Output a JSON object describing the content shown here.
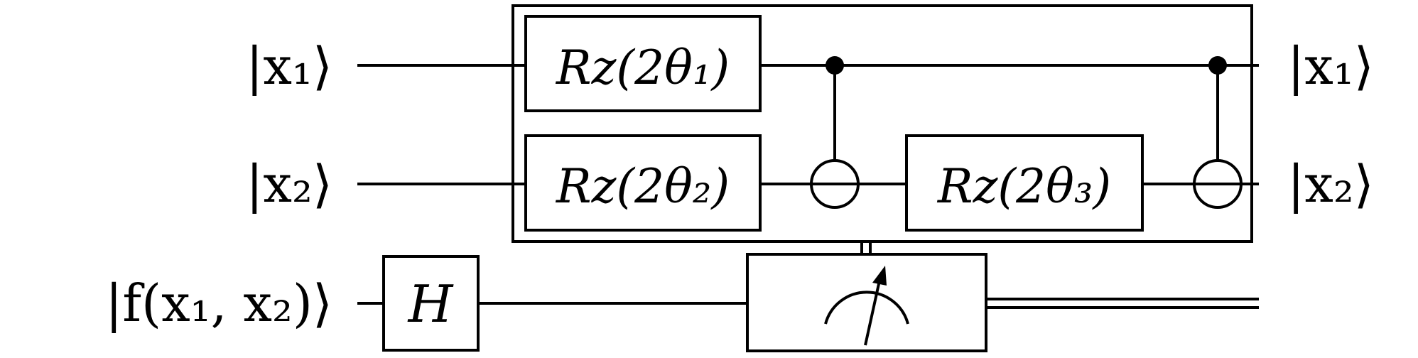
{
  "diagram": {
    "type": "quantum-circuit",
    "inputs": [
      {
        "label": "|x₁⟩"
      },
      {
        "label": "|x₂⟩"
      },
      {
        "label": "|f(x₁, x₂)⟩"
      }
    ],
    "outputs": [
      {
        "label": "|x₁⟩"
      },
      {
        "label": "|x₂⟩"
      }
    ],
    "gates": {
      "rz1": "Rz(2θ₁)",
      "rz2": "Rz(2θ₂)",
      "rz3": "Rz(2θ₃)",
      "hadamard": "H"
    },
    "controls": [
      {
        "control_qubit": "x1",
        "target_qubit": "x2",
        "kind": "CNOT"
      },
      {
        "control_qubit": "x1",
        "target_qubit": "x2",
        "kind": "CNOT"
      }
    ],
    "measurement": {
      "qubit": "f",
      "classical_output": true,
      "controls_block": true
    }
  }
}
